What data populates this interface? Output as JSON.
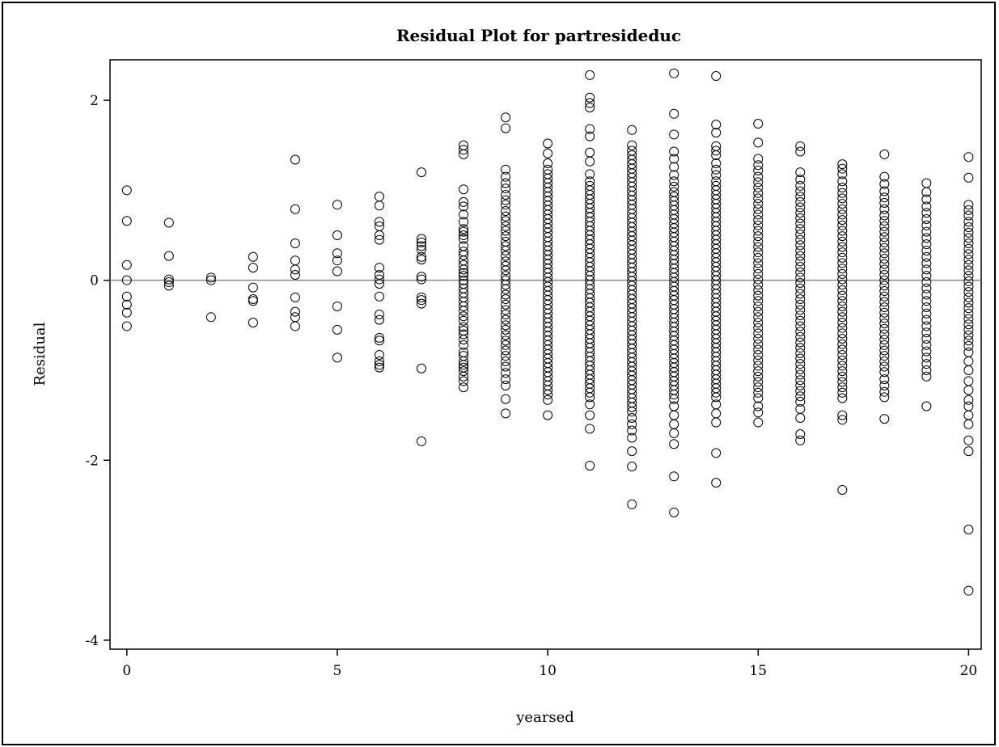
{
  "chart_data": {
    "type": "scatter",
    "title": "Residual Plot for partresideduc",
    "xlabel": "yearsed",
    "ylabel": "Residual",
    "xlim": [
      -0.4,
      20.3
    ],
    "ylim": [
      -4.1,
      2.45
    ],
    "xticks": [
      0,
      5,
      10,
      15,
      20
    ],
    "yticks": [
      -4,
      -2,
      0,
      2
    ],
    "reference_line_y": 0,
    "grid": false,
    "marker": "open-circle",
    "series": [
      {
        "x": 0,
        "y": [
          1.0,
          0.66,
          0.17,
          0.0,
          -0.18,
          -0.27,
          -0.36,
          -0.51
        ]
      },
      {
        "x": 1,
        "y": [
          0.64,
          0.27,
          0.01,
          -0.02,
          -0.06
        ]
      },
      {
        "x": 2,
        "y": [
          0.03,
          0.0,
          -0.41
        ]
      },
      {
        "x": 3,
        "y": [
          0.26,
          0.14,
          -0.08,
          -0.21,
          -0.23,
          -0.47
        ]
      },
      {
        "x": 4,
        "y": [
          1.34,
          0.79,
          0.41,
          0.22,
          0.12,
          0.06,
          -0.19,
          -0.35,
          -0.41,
          -0.51
        ]
      },
      {
        "x": 5,
        "y": [
          0.84,
          0.5,
          0.3,
          0.22,
          0.1,
          -0.29,
          -0.55,
          -0.86
        ]
      },
      {
        "x": 6,
        "y": [
          0.93,
          0.83,
          0.65,
          0.6,
          0.5,
          0.45,
          0.14,
          0.06,
          0.01,
          -0.04,
          -0.18,
          -0.38,
          -0.44,
          -0.64,
          -0.67,
          -0.83,
          -0.9,
          -0.94,
          -0.97
        ]
      },
      {
        "x": 7,
        "y": [
          1.2,
          0.46,
          0.42,
          0.38,
          0.34,
          0.26,
          0.23,
          0.04,
          0.01,
          -0.19,
          -0.22,
          -0.26,
          -0.98,
          -1.79
        ]
      },
      {
        "x": 8,
        "y": [
          1.5,
          1.45,
          1.4,
          1.01,
          0.87,
          0.82,
          0.73,
          0.65,
          0.57,
          0.54,
          0.5,
          0.46,
          0.38,
          0.32,
          0.28,
          0.22,
          0.17,
          0.12,
          0.08,
          0.05,
          0.0,
          -0.04,
          -0.09,
          -0.14,
          -0.19,
          -0.24,
          -0.29,
          -0.34,
          -0.4,
          -0.45,
          -0.52,
          -0.56,
          -0.6,
          -0.66,
          -0.72,
          -0.8,
          -0.84,
          -0.9,
          -0.94,
          -0.97,
          -1.01,
          -1.07,
          -1.12,
          -1.19
        ]
      },
      {
        "x": 9,
        "y": [
          1.81,
          1.69,
          1.23,
          1.15,
          1.08,
          1.02,
          0.95,
          0.89,
          0.84,
          0.77,
          0.71,
          0.66,
          0.6,
          0.55,
          0.49,
          0.43,
          0.38,
          0.33,
          0.27,
          0.21,
          0.16,
          0.11,
          0.05,
          0.0,
          -0.05,
          -0.1,
          -0.16,
          -0.21,
          -0.27,
          -0.33,
          -0.38,
          -0.44,
          -0.5,
          -0.55,
          -0.61,
          -0.67,
          -0.72,
          -0.78,
          -0.84,
          -0.9,
          -0.96,
          -1.03,
          -1.1,
          -1.17,
          -1.32,
          -1.48
        ]
      },
      {
        "x": 10,
        "y": [
          1.52,
          1.41,
          1.3,
          1.23,
          1.18,
          1.13,
          1.08,
          1.03,
          0.98,
          0.93,
          0.88,
          0.83,
          0.78,
          0.73,
          0.68,
          0.63,
          0.58,
          0.53,
          0.48,
          0.43,
          0.38,
          0.33,
          0.28,
          0.23,
          0.18,
          0.13,
          0.08,
          0.03,
          -0.02,
          -0.07,
          -0.12,
          -0.17,
          -0.22,
          -0.27,
          -0.32,
          -0.37,
          -0.42,
          -0.47,
          -0.52,
          -0.57,
          -0.62,
          -0.67,
          -0.72,
          -0.77,
          -0.82,
          -0.87,
          -0.92,
          -0.97,
          -1.02,
          -1.07,
          -1.12,
          -1.17,
          -1.22,
          -1.27,
          -1.33,
          -1.5
        ]
      },
      {
        "x": 11,
        "y": [
          2.28,
          2.03,
          1.97,
          1.92,
          1.68,
          1.6,
          1.42,
          1.32,
          1.18,
          1.1,
          1.05,
          1.0,
          0.95,
          0.9,
          0.85,
          0.8,
          0.75,
          0.7,
          0.65,
          0.6,
          0.55,
          0.5,
          0.45,
          0.4,
          0.35,
          0.3,
          0.25,
          0.2,
          0.15,
          0.1,
          0.05,
          0.0,
          -0.05,
          -0.1,
          -0.15,
          -0.2,
          -0.25,
          -0.3,
          -0.35,
          -0.4,
          -0.45,
          -0.5,
          -0.55,
          -0.6,
          -0.65,
          -0.7,
          -0.75,
          -0.8,
          -0.85,
          -0.9,
          -0.95,
          -1.0,
          -1.05,
          -1.1,
          -1.15,
          -1.2,
          -1.25,
          -1.3,
          -1.38,
          -1.5,
          -1.65,
          -2.06
        ]
      },
      {
        "x": 12,
        "y": [
          1.67,
          1.5,
          1.44,
          1.39,
          1.34,
          1.29,
          1.24,
          1.19,
          1.14,
          1.09,
          1.04,
          0.99,
          0.94,
          0.89,
          0.84,
          0.79,
          0.74,
          0.69,
          0.64,
          0.59,
          0.54,
          0.49,
          0.44,
          0.39,
          0.34,
          0.29,
          0.24,
          0.19,
          0.14,
          0.09,
          0.04,
          -0.01,
          -0.06,
          -0.11,
          -0.16,
          -0.21,
          -0.26,
          -0.31,
          -0.36,
          -0.41,
          -0.46,
          -0.51,
          -0.56,
          -0.61,
          -0.66,
          -0.71,
          -0.76,
          -0.81,
          -0.86,
          -0.91,
          -0.96,
          -1.01,
          -1.06,
          -1.11,
          -1.16,
          -1.21,
          -1.26,
          -1.31,
          -1.36,
          -1.41,
          -1.46,
          -1.53,
          -1.6,
          -1.67,
          -1.75,
          -1.9,
          -2.07,
          -2.49
        ]
      },
      {
        "x": 13,
        "y": [
          2.3,
          1.85,
          1.62,
          1.43,
          1.35,
          1.26,
          1.17,
          1.1,
          1.04,
          0.98,
          0.93,
          0.88,
          0.83,
          0.78,
          0.73,
          0.68,
          0.63,
          0.58,
          0.53,
          0.48,
          0.43,
          0.38,
          0.33,
          0.28,
          0.23,
          0.18,
          0.13,
          0.08,
          0.03,
          -0.02,
          -0.07,
          -0.12,
          -0.17,
          -0.22,
          -0.27,
          -0.32,
          -0.37,
          -0.42,
          -0.47,
          -0.52,
          -0.57,
          -0.62,
          -0.67,
          -0.72,
          -0.77,
          -0.82,
          -0.87,
          -0.92,
          -0.97,
          -1.02,
          -1.07,
          -1.12,
          -1.17,
          -1.22,
          -1.27,
          -1.32,
          -1.4,
          -1.5,
          -1.6,
          -1.7,
          -1.82,
          -2.18,
          -2.58
        ]
      },
      {
        "x": 14,
        "y": [
          2.27,
          1.73,
          1.64,
          1.49,
          1.44,
          1.39,
          1.3,
          1.23,
          1.17,
          1.1,
          1.05,
          1.0,
          0.95,
          0.9,
          0.85,
          0.8,
          0.75,
          0.7,
          0.65,
          0.6,
          0.55,
          0.5,
          0.45,
          0.4,
          0.35,
          0.3,
          0.25,
          0.2,
          0.15,
          0.1,
          0.05,
          0.0,
          -0.05,
          -0.1,
          -0.15,
          -0.2,
          -0.25,
          -0.3,
          -0.35,
          -0.4,
          -0.45,
          -0.5,
          -0.55,
          -0.6,
          -0.65,
          -0.7,
          -0.75,
          -0.8,
          -0.85,
          -0.9,
          -0.95,
          -1.0,
          -1.05,
          -1.1,
          -1.15,
          -1.2,
          -1.25,
          -1.3,
          -1.38,
          -1.48,
          -1.58,
          -1.92,
          -2.25
        ]
      },
      {
        "x": 15,
        "y": [
          1.74,
          1.53,
          1.35,
          1.28,
          1.22,
          1.15,
          1.09,
          1.03,
          0.97,
          0.91,
          0.85,
          0.79,
          0.73,
          0.67,
          0.61,
          0.55,
          0.49,
          0.43,
          0.37,
          0.31,
          0.25,
          0.19,
          0.13,
          0.07,
          0.01,
          -0.05,
          -0.11,
          -0.17,
          -0.23,
          -0.29,
          -0.35,
          -0.41,
          -0.47,
          -0.53,
          -0.59,
          -0.65,
          -0.71,
          -0.77,
          -0.83,
          -0.89,
          -0.95,
          -1.01,
          -1.07,
          -1.13,
          -1.19,
          -1.25,
          -1.31,
          -1.4,
          -1.47,
          -1.58
        ]
      },
      {
        "x": 16,
        "y": [
          1.49,
          1.43,
          1.2,
          1.12,
          1.05,
          0.99,
          0.93,
          0.87,
          0.81,
          0.75,
          0.69,
          0.63,
          0.57,
          0.51,
          0.45,
          0.39,
          0.33,
          0.27,
          0.21,
          0.15,
          0.09,
          0.03,
          -0.03,
          -0.09,
          -0.15,
          -0.21,
          -0.27,
          -0.33,
          -0.39,
          -0.45,
          -0.51,
          -0.57,
          -0.63,
          -0.69,
          -0.75,
          -0.81,
          -0.87,
          -0.93,
          -0.99,
          -1.05,
          -1.11,
          -1.17,
          -1.23,
          -1.29,
          -1.35,
          -1.43,
          -1.53,
          -1.71,
          -1.78
        ]
      },
      {
        "x": 17,
        "y": [
          1.29,
          1.24,
          1.18,
          1.1,
          1.03,
          0.97,
          0.91,
          0.85,
          0.79,
          0.73,
          0.67,
          0.61,
          0.55,
          0.49,
          0.43,
          0.37,
          0.31,
          0.25,
          0.19,
          0.13,
          0.07,
          0.01,
          -0.05,
          -0.11,
          -0.17,
          -0.23,
          -0.29,
          -0.35,
          -0.41,
          -0.47,
          -0.53,
          -0.59,
          -0.65,
          -0.71,
          -0.77,
          -0.83,
          -0.89,
          -0.95,
          -1.01,
          -1.07,
          -1.13,
          -1.19,
          -1.25,
          -1.31,
          -1.5,
          -1.55,
          -2.33
        ]
      },
      {
        "x": 18,
        "y": [
          1.4,
          1.15,
          1.07,
          0.99,
          0.92,
          0.86,
          0.79,
          0.72,
          0.66,
          0.6,
          0.54,
          0.48,
          0.42,
          0.36,
          0.3,
          0.24,
          0.18,
          0.12,
          0.06,
          0.0,
          -0.06,
          -0.12,
          -0.18,
          -0.24,
          -0.3,
          -0.36,
          -0.42,
          -0.48,
          -0.54,
          -0.6,
          -0.66,
          -0.72,
          -0.78,
          -0.84,
          -0.9,
          -0.96,
          -1.02,
          -1.1,
          -1.17,
          -1.24,
          -1.3,
          -1.54
        ]
      },
      {
        "x": 19,
        "y": [
          1.08,
          0.98,
          0.9,
          0.82,
          0.75,
          0.68,
          0.61,
          0.54,
          0.47,
          0.4,
          0.33,
          0.26,
          0.19,
          0.12,
          0.05,
          -0.02,
          -0.09,
          -0.16,
          -0.23,
          -0.3,
          -0.37,
          -0.44,
          -0.51,
          -0.58,
          -0.65,
          -0.72,
          -0.79,
          -0.86,
          -0.93,
          -1.0,
          -1.07,
          -1.4
        ]
      },
      {
        "x": 20,
        "y": [
          1.37,
          1.14,
          0.84,
          0.78,
          0.72,
          0.65,
          0.59,
          0.53,
          0.47,
          0.41,
          0.35,
          0.29,
          0.23,
          0.17,
          0.11,
          0.05,
          -0.01,
          -0.07,
          -0.13,
          -0.19,
          -0.25,
          -0.31,
          -0.37,
          -0.43,
          -0.49,
          -0.55,
          -0.61,
          -0.67,
          -0.73,
          -0.8,
          -0.9,
          -1.0,
          -1.12,
          -1.22,
          -1.33,
          -1.4,
          -1.5,
          -1.6,
          -1.78,
          -1.9,
          -2.77,
          -3.45
        ]
      }
    ]
  }
}
